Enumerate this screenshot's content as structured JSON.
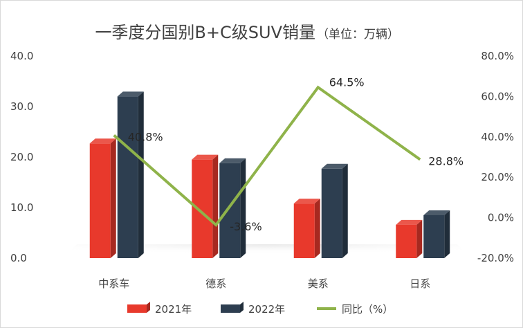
{
  "chart_data": {
    "type": "bar",
    "title": "一季度分国别B+C级SUV销量",
    "title_unit": "（单位：万辆）",
    "categories": [
      "中系车",
      "德系",
      "美系",
      "日系"
    ],
    "series": [
      {
        "name": "2021年",
        "type": "bar",
        "axis": "left",
        "color": "#e8392c",
        "values": [
          22.7,
          19.5,
          10.8,
          6.6
        ]
      },
      {
        "name": "2022年",
        "type": "bar",
        "axis": "left",
        "color": "#2d3e50",
        "values": [
          32.0,
          18.8,
          17.7,
          8.5
        ]
      },
      {
        "name": "同比（%）",
        "type": "line",
        "axis": "right",
        "color": "#8fb34a",
        "values": [
          40.8,
          -3.6,
          64.5,
          28.8
        ]
      }
    ],
    "data_labels": [
      "40.8%",
      "-3.6%",
      "64.5%",
      "28.8%"
    ],
    "y_left": {
      "min": 0,
      "max": 40,
      "ticks": [
        "0.0",
        "10.0",
        "20.0",
        "30.0",
        "40.0"
      ]
    },
    "y_right": {
      "min": -20,
      "max": 80,
      "ticks": [
        "-20.0%",
        "0.0%",
        "20.0%",
        "40.0%",
        "60.0%",
        "80.0%"
      ]
    },
    "grid": false,
    "legend": "bottom"
  }
}
